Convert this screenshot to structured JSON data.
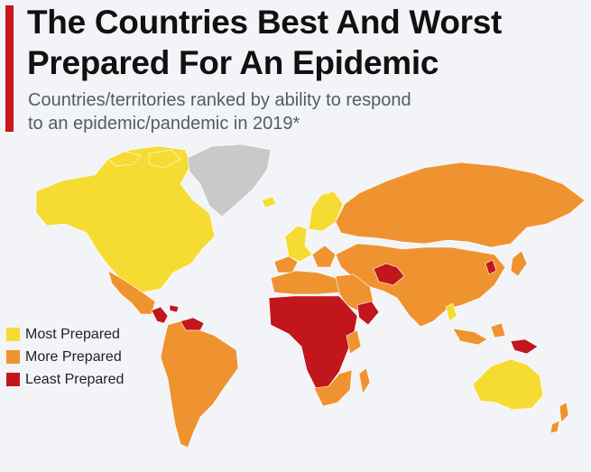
{
  "header": {
    "title_line1": "The Countries Best And Worst",
    "title_line2": "Prepared For An Epidemic",
    "subtitle_line1": "Countries/territories ranked by ability to respond",
    "subtitle_line2": "to an epidemic/pandemic in 2019*"
  },
  "legend": {
    "items": [
      {
        "label": "Most Prepared",
        "color": "#f6dc32"
      },
      {
        "label": "More Prepared",
        "color": "#ef9330"
      },
      {
        "label": "Least Prepared",
        "color": "#c1161c"
      }
    ]
  },
  "colors": {
    "accent": "#c8171e",
    "most_prepared": "#f6dc32",
    "more_prepared": "#ef9330",
    "least_prepared": "#c1161c",
    "no_data": "#c9c9c9",
    "background": "#f2f4f7"
  }
}
